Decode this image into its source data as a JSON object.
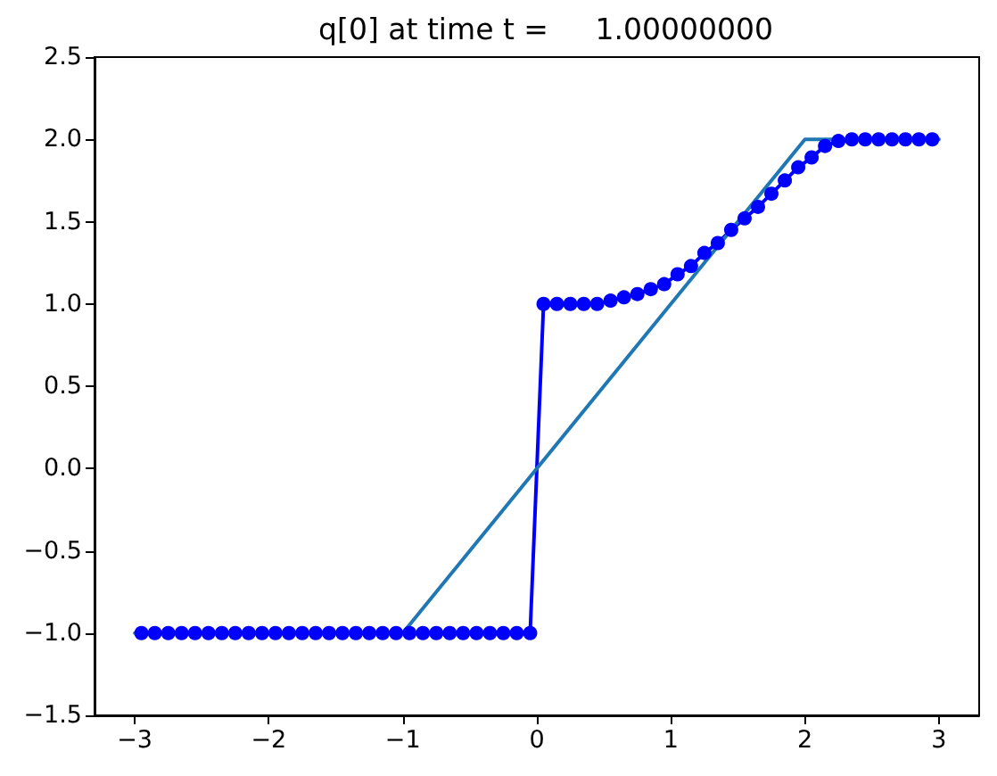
{
  "chart_data": {
    "type": "line",
    "title": "q[0] at time t =     1.00000000",
    "series": [
      {
        "color": "#0000ff",
        "marker": "circle",
        "x": [
          -2.95,
          -2.85,
          -2.75,
          -2.65,
          -2.55,
          -2.45,
          -2.35,
          -2.25,
          -2.15,
          -2.05,
          -1.95,
          -1.85,
          -1.75,
          -1.65,
          -1.55,
          -1.45,
          -1.35,
          -1.25,
          -1.15,
          -1.05,
          -0.95,
          -0.85,
          -0.75,
          -0.65,
          -0.55,
          -0.45,
          -0.35,
          -0.25,
          -0.15,
          -0.05,
          0.05,
          0.15,
          0.25,
          0.35,
          0.45,
          0.55,
          0.65,
          0.75,
          0.85,
          0.95,
          1.05,
          1.15,
          1.25,
          1.35,
          1.45,
          1.55,
          1.65,
          1.75,
          1.85,
          1.95,
          2.05,
          2.15,
          2.25,
          2.35,
          2.45,
          2.55,
          2.65,
          2.75,
          2.85,
          2.95
        ],
        "values": [
          -1,
          -1,
          -1,
          -1,
          -1,
          -1,
          -1,
          -1,
          -1,
          -1,
          -1,
          -1,
          -1,
          -1,
          -1,
          -1,
          -1,
          -1,
          -1,
          -1,
          -1,
          -1,
          -1,
          -1,
          -1,
          -1,
          -1,
          -1,
          -1,
          -1,
          1.0,
          1.0,
          1.0,
          1.0,
          1.0,
          1.02,
          1.04,
          1.06,
          1.09,
          1.12,
          1.18,
          1.23,
          1.31,
          1.37,
          1.45,
          1.52,
          1.59,
          1.67,
          1.75,
          1.83,
          1.89,
          1.96,
          1.99,
          2.0,
          2.0,
          2.0,
          2.0,
          2.0,
          2.0,
          2.0
        ]
      },
      {
        "color": "#1f77b4",
        "marker": "none",
        "x": [
          -3,
          -1,
          2,
          3
        ],
        "values": [
          -1,
          -1,
          2,
          2
        ]
      }
    ],
    "xlim": [
      -3.3,
      3.3
    ],
    "xticks": [
      {
        "value": -3,
        "label": "−3"
      },
      {
        "value": -2,
        "label": "−2"
      },
      {
        "value": -1,
        "label": "−1"
      },
      0,
      1,
      2,
      3
    ],
    "ylim": [
      -1.5,
      2.5
    ],
    "yticks": [
      {
        "value": -1.5,
        "label": "−1.5"
      },
      {
        "value": -1,
        "label": "−1.0"
      },
      {
        "value": -0.5,
        "label": "−0.5"
      },
      {
        "value": 0,
        "label": "0.0"
      },
      {
        "value": 0.5,
        "label": "0.5"
      },
      {
        "value": 1,
        "label": "1.0"
      },
      {
        "value": 1.5,
        "label": "1.5"
      },
      {
        "value": 2,
        "label": "2.0"
      },
      {
        "value": 2.5,
        "label": "2.5"
      }
    ]
  }
}
